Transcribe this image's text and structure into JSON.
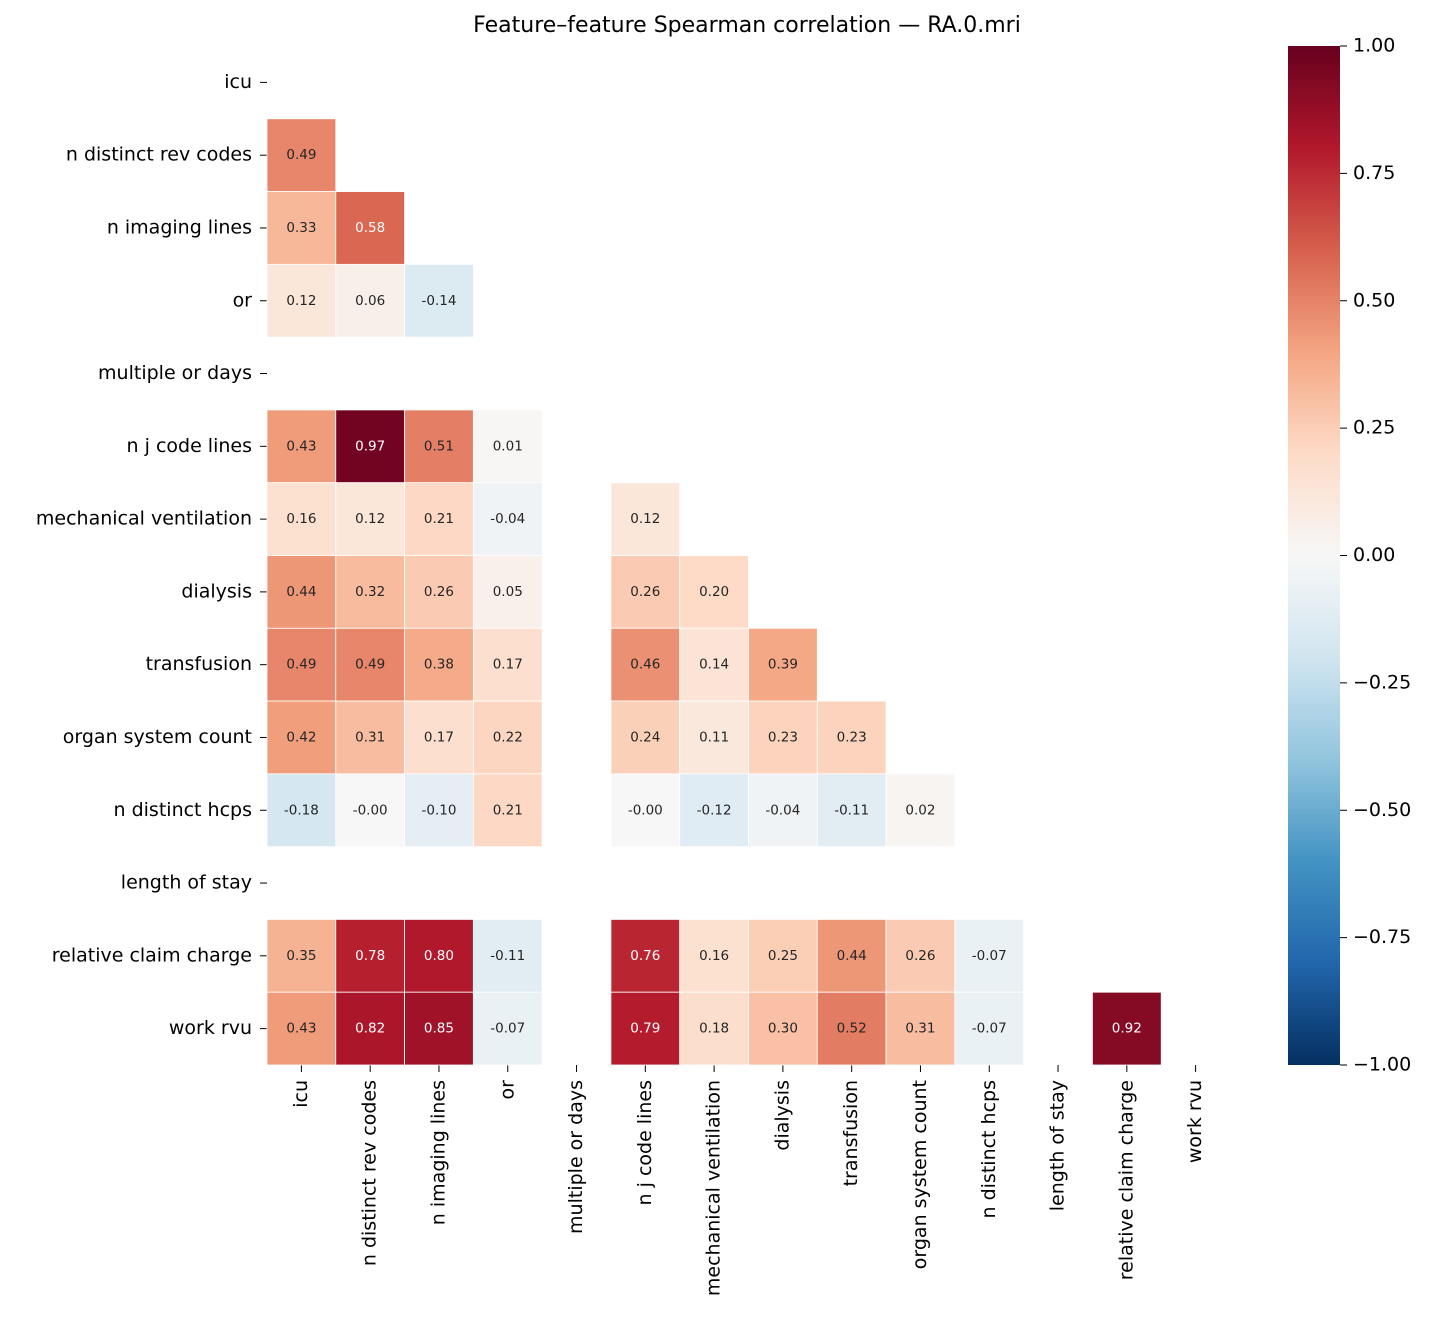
{
  "chart_data": {
    "type": "heatmap",
    "title": "Feature–feature Spearman correlation — RA.0.mri",
    "categories": [
      "icu",
      "n distinct rev codes",
      "n imaging lines",
      "or",
      "multiple or days",
      "n j code lines",
      "mechanical ventilation",
      "dialysis",
      "transfusion",
      "organ system count",
      "n distinct hcps",
      "length of stay",
      "relative claim charge",
      "work rvu"
    ],
    "values": [
      [
        null,
        null,
        null,
        null,
        null,
        null,
        null,
        null,
        null,
        null,
        null,
        null,
        null,
        null
      ],
      [
        0.49,
        null,
        null,
        null,
        null,
        null,
        null,
        null,
        null,
        null,
        null,
        null,
        null,
        null
      ],
      [
        0.33,
        0.58,
        null,
        null,
        null,
        null,
        null,
        null,
        null,
        null,
        null,
        null,
        null,
        null
      ],
      [
        0.12,
        0.06,
        -0.14,
        null,
        null,
        null,
        null,
        null,
        null,
        null,
        null,
        null,
        null,
        null
      ],
      [
        null,
        null,
        null,
        null,
        null,
        null,
        null,
        null,
        null,
        null,
        null,
        null,
        null,
        null
      ],
      [
        0.43,
        0.97,
        0.51,
        0.01,
        null,
        null,
        null,
        null,
        null,
        null,
        null,
        null,
        null,
        null
      ],
      [
        0.16,
        0.12,
        0.21,
        -0.04,
        null,
        0.12,
        null,
        null,
        null,
        null,
        null,
        null,
        null,
        null
      ],
      [
        0.44,
        0.32,
        0.26,
        0.05,
        null,
        0.26,
        0.2,
        null,
        null,
        null,
        null,
        null,
        null,
        null
      ],
      [
        0.49,
        0.49,
        0.38,
        0.17,
        null,
        0.46,
        0.14,
        0.39,
        null,
        null,
        null,
        null,
        null,
        null
      ],
      [
        0.42,
        0.31,
        0.17,
        0.22,
        null,
        0.24,
        0.11,
        0.23,
        0.23,
        null,
        null,
        null,
        null,
        null
      ],
      [
        -0.18,
        0,
        -0.1,
        0.21,
        null,
        0,
        -0.12,
        -0.04,
        -0.11,
        0.02,
        null,
        null,
        null,
        null
      ],
      [
        null,
        null,
        null,
        null,
        null,
        null,
        null,
        null,
        null,
        null,
        null,
        null,
        null,
        null
      ],
      [
        0.35,
        0.78,
        0.8,
        -0.11,
        null,
        0.76,
        0.16,
        0.25,
        0.44,
        0.26,
        -0.07,
        null,
        null,
        null
      ],
      [
        0.43,
        0.82,
        0.85,
        -0.07,
        null,
        0.79,
        0.18,
        0.3,
        0.52,
        0.31,
        -0.07,
        null,
        0.92,
        null
      ]
    ],
    "value_labels": [
      [
        null,
        null,
        null,
        null,
        null,
        null,
        null,
        null,
        null,
        null,
        null,
        null,
        null,
        null
      ],
      [
        "0.49",
        null,
        null,
        null,
        null,
        null,
        null,
        null,
        null,
        null,
        null,
        null,
        null,
        null
      ],
      [
        "0.33",
        "0.58",
        null,
        null,
        null,
        null,
        null,
        null,
        null,
        null,
        null,
        null,
        null,
        null
      ],
      [
        "0.12",
        "0.06",
        "-0.14",
        null,
        null,
        null,
        null,
        null,
        null,
        null,
        null,
        null,
        null,
        null
      ],
      [
        null,
        null,
        null,
        null,
        null,
        null,
        null,
        null,
        null,
        null,
        null,
        null,
        null,
        null
      ],
      [
        "0.43",
        "0.97",
        "0.51",
        "0.01",
        null,
        null,
        null,
        null,
        null,
        null,
        null,
        null,
        null,
        null
      ],
      [
        "0.16",
        "0.12",
        "0.21",
        "-0.04",
        null,
        "0.12",
        null,
        null,
        null,
        null,
        null,
        null,
        null,
        null
      ],
      [
        "0.44",
        "0.32",
        "0.26",
        "0.05",
        null,
        "0.26",
        "0.20",
        null,
        null,
        null,
        null,
        null,
        null,
        null
      ],
      [
        "0.49",
        "0.49",
        "0.38",
        "0.17",
        null,
        "0.46",
        "0.14",
        "0.39",
        null,
        null,
        null,
        null,
        null,
        null
      ],
      [
        "0.42",
        "0.31",
        "0.17",
        "0.22",
        null,
        "0.24",
        "0.11",
        "0.23",
        "0.23",
        null,
        null,
        null,
        null,
        null
      ],
      [
        "-0.18",
        "-0.00",
        "-0.10",
        "0.21",
        null,
        "-0.00",
        "-0.12",
        "-0.04",
        "-0.11",
        "0.02",
        null,
        null,
        null,
        null
      ],
      [
        null,
        null,
        null,
        null,
        null,
        null,
        null,
        null,
        null,
        null,
        null,
        null,
        null,
        null
      ],
      [
        "0.35",
        "0.78",
        "0.80",
        "-0.11",
        null,
        "0.76",
        "0.16",
        "0.25",
        "0.44",
        "0.26",
        "-0.07",
        null,
        null,
        null
      ],
      [
        "0.43",
        "0.82",
        "0.85",
        "-0.07",
        null,
        "0.79",
        "0.18",
        "0.30",
        "0.52",
        "0.31",
        "-0.07",
        null,
        "0.92",
        null
      ]
    ],
    "colorscale": [
      "#053061",
      "#2166ac",
      "#4393c3",
      "#92c5de",
      "#d1e5f0",
      "#f7f7f7",
      "#fddbc7",
      "#f4a582",
      "#d6604d",
      "#b2182b",
      "#67001f"
    ],
    "zlim": [
      -1,
      1
    ],
    "zticks": [
      {
        "value": 1,
        "label": "1.00"
      },
      {
        "value": 0.75,
        "label": "0.75"
      },
      {
        "value": 0.5,
        "label": "0.50"
      },
      {
        "value": 0.25,
        "label": "0.25"
      },
      {
        "value": 0,
        "label": "0.00"
      },
      {
        "value": -0.25,
        "label": "−0.25"
      },
      {
        "value": -0.5,
        "label": "−0.50"
      },
      {
        "value": -0.75,
        "label": "−0.75"
      },
      {
        "value": -1,
        "label": "−1.00"
      }
    ]
  }
}
